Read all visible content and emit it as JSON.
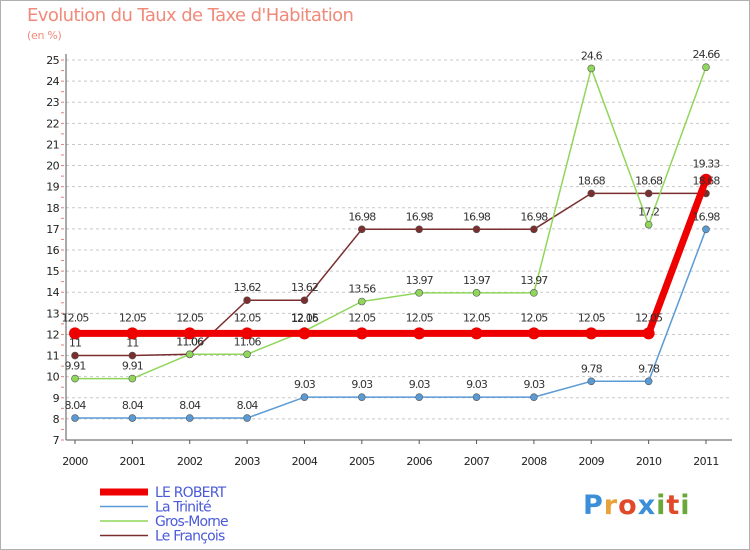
{
  "title": "Evolution du Taux de Taxe d'Habitation",
  "subtitle": "(en %)",
  "logo": {
    "text": "Proxiti",
    "colors": [
      "#3a8fd8",
      "#e8a23a",
      "#e04a2a",
      "#3a8fd8",
      "#6aa83a",
      "#e04a2a",
      "#6aa83a"
    ]
  },
  "chart_data": {
    "type": "line",
    "x": [
      2000,
      2001,
      2002,
      2003,
      2004,
      2005,
      2006,
      2007,
      2008,
      2009,
      2010,
      2011
    ],
    "ylim": [
      7,
      25
    ],
    "yticks": [
      7,
      8,
      9,
      10,
      11,
      12,
      13,
      14,
      15,
      16,
      17,
      18,
      19,
      20,
      21,
      22,
      23,
      24,
      25
    ],
    "grid": "horizontal dashed",
    "legend_position": "bottom-left",
    "series": [
      {
        "name": "LE ROBERT",
        "color": "#ee0000",
        "width": 7,
        "marker_r": 6,
        "values": [
          12.05,
          12.05,
          12.05,
          12.05,
          12.05,
          12.05,
          12.05,
          12.05,
          12.05,
          12.05,
          12.05,
          19.33
        ],
        "labels": [
          "12.05",
          "12.05",
          "12.05",
          "12.05",
          "12.05",
          "12.05",
          "12.05",
          "12.05",
          "12.05",
          "12.05",
          "12.05",
          "19.33"
        ]
      },
      {
        "name": "La Trinité",
        "color": "#5b9bd5",
        "width": 1.5,
        "marker_r": 3.5,
        "values": [
          8.04,
          8.04,
          8.04,
          8.04,
          9.03,
          9.03,
          9.03,
          9.03,
          9.03,
          9.78,
          9.78,
          16.98
        ],
        "labels": [
          "8.04",
          "8.04",
          "8.04",
          "8.04",
          "9.03",
          "9.03",
          "9.03",
          "9.03",
          "9.03",
          "9.78",
          "9.78",
          "16.98"
        ]
      },
      {
        "name": "Gros-Morne",
        "color": "#8fd65a",
        "width": 1.5,
        "marker_r": 3.5,
        "values": [
          9.91,
          9.91,
          11.06,
          11.06,
          12.16,
          13.56,
          13.97,
          13.97,
          13.97,
          24.6,
          17.2,
          24.66
        ],
        "labels": [
          "9.91",
          "9.91",
          "11.06",
          "11.06",
          "12.16",
          "13.56",
          "13.97",
          "13.97",
          "13.97",
          "24.6",
          "17.2",
          "24.66"
        ]
      },
      {
        "name": "Le François",
        "color": "#7a2e2e",
        "width": 1.5,
        "marker_r": 3.5,
        "values": [
          11,
          11,
          11.06,
          13.62,
          13.62,
          16.98,
          16.98,
          16.98,
          16.98,
          18.68,
          18.68,
          18.68
        ],
        "labels": [
          "11",
          "11",
          "11.06",
          "13.62",
          "13.62",
          "16.98",
          "16.98",
          "16.98",
          "16.98",
          "18.68",
          "18.68",
          "18.68"
        ]
      }
    ]
  }
}
